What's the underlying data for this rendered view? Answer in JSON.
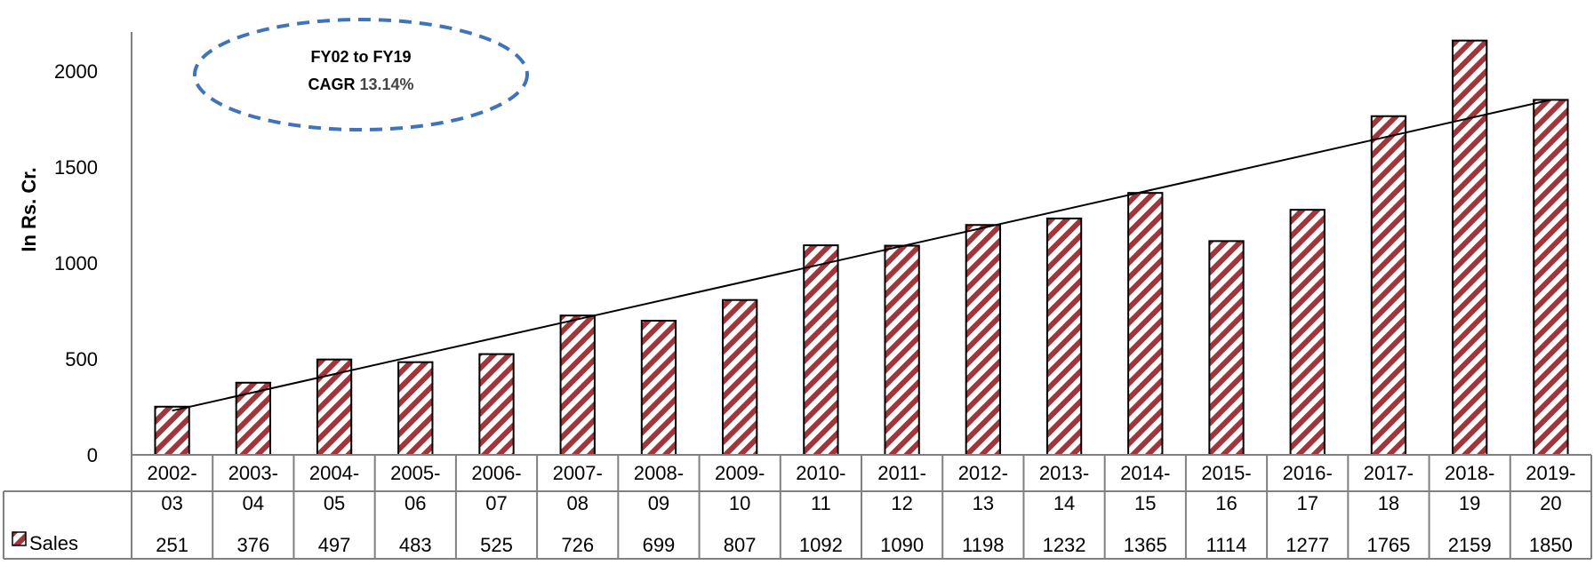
{
  "chart_data": {
    "type": "bar",
    "categories": [
      "2002-03",
      "2003-04",
      "2004-05",
      "2005-06",
      "2006-07",
      "2007-08",
      "2008-09",
      "2009-10",
      "2010-11",
      "2011-12",
      "2012-13",
      "2013-14",
      "2014-15",
      "2015-16",
      "2016-17",
      "2017-18",
      "2018-19",
      "2019-20"
    ],
    "category_lines": [
      [
        "2002-",
        "03"
      ],
      [
        "2003-",
        "04"
      ],
      [
        "2004-",
        "05"
      ],
      [
        "2005-",
        "06"
      ],
      [
        "2006-",
        "07"
      ],
      [
        "2007-",
        "08"
      ],
      [
        "2008-",
        "09"
      ],
      [
        "2009-",
        "10"
      ],
      [
        "2010-",
        "11"
      ],
      [
        "2011-",
        "12"
      ],
      [
        "2012-",
        "13"
      ],
      [
        "2013-",
        "14"
      ],
      [
        "2014-",
        "15"
      ],
      [
        "2015-",
        "16"
      ],
      [
        "2016-",
        "17"
      ],
      [
        "2017-",
        "18"
      ],
      [
        "2018-",
        "19"
      ],
      [
        "2019-",
        "20"
      ]
    ],
    "series": [
      {
        "name": "Sales",
        "values": [
          251,
          376,
          497,
          483,
          525,
          726,
          699,
          807,
          1092,
          1090,
          1198,
          1232,
          1365,
          1114,
          1277,
          1765,
          2159,
          1850
        ]
      }
    ],
    "ylabel": "In Rs. Cr.",
    "ylim": [
      0,
      2200
    ],
    "yticks": [
      0,
      500,
      1000,
      1500,
      2000
    ],
    "trendline": {
      "type": "linear",
      "from": 230,
      "to": 1850
    },
    "annotation": {
      "line1": "FY02 to FY19",
      "line2_label": "CAGR ",
      "line2_value": "13.14%"
    },
    "data_table": true,
    "gridlines": false,
    "colors": {
      "bar_stripe": "#a0353a",
      "bar_edge": "#000000",
      "trend": "#000000",
      "ellipse": "#3f74b8",
      "axis": "#808080"
    }
  }
}
